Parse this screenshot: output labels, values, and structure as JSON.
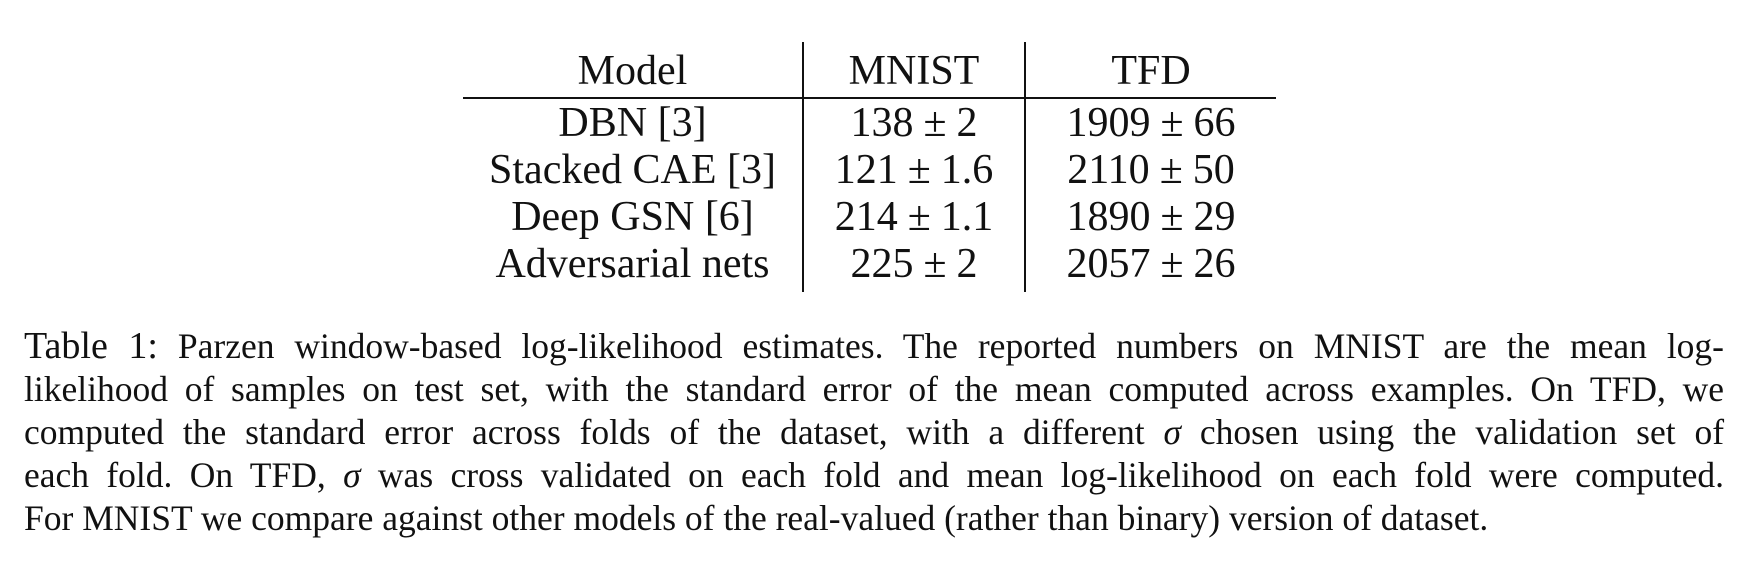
{
  "table": {
    "headers": [
      "Model",
      "MNIST",
      "TFD"
    ],
    "rows": [
      {
        "model": "DBN [3]",
        "mnist": {
          "mean": "138",
          "pm": "±",
          "err": "2",
          "bold": false
        },
        "tfd": {
          "mean": "1909",
          "pm": "±",
          "err": "66",
          "bold": false
        }
      },
      {
        "model": "Stacked CAE [3]",
        "mnist": {
          "mean": "121",
          "pm": "±",
          "err": "1.6",
          "bold": false
        },
        "tfd": {
          "mean": "2110",
          "pm": "±",
          "err": "50",
          "bold": true
        }
      },
      {
        "model": "Deep GSN [6]",
        "mnist": {
          "mean": "214",
          "pm": "±",
          "err": "1.1",
          "bold": false
        },
        "tfd": {
          "mean": "1890",
          "pm": "±",
          "err": "29",
          "bold": false
        }
      },
      {
        "model": "Adversarial nets",
        "mnist": {
          "mean": "225",
          "pm": "±",
          "err": "2",
          "bold": true
        },
        "tfd": {
          "mean": "2057",
          "pm": "±",
          "err": "26",
          "bold": true
        }
      }
    ]
  },
  "caption": {
    "label": "Table 1:",
    "line1": "Parzen window-based log-likelihood estimates. The reported numbers on MNIST are the mean log-",
    "line2": "likelihood of samples on test set, with the standard error of the mean computed across examples. On TFD, we",
    "line3_a": "computed the standard error across folds of the dataset, with a different",
    "sigma": "σ",
    "line3_b": "chosen using the validation set of",
    "line4_a": "each fold. On TFD,",
    "line4_b": "was cross validated on each fold and mean log-likelihood on each fold were computed.",
    "line5": "For MNIST we compare against other models of the real-valued (rather than binary) version of dataset."
  }
}
